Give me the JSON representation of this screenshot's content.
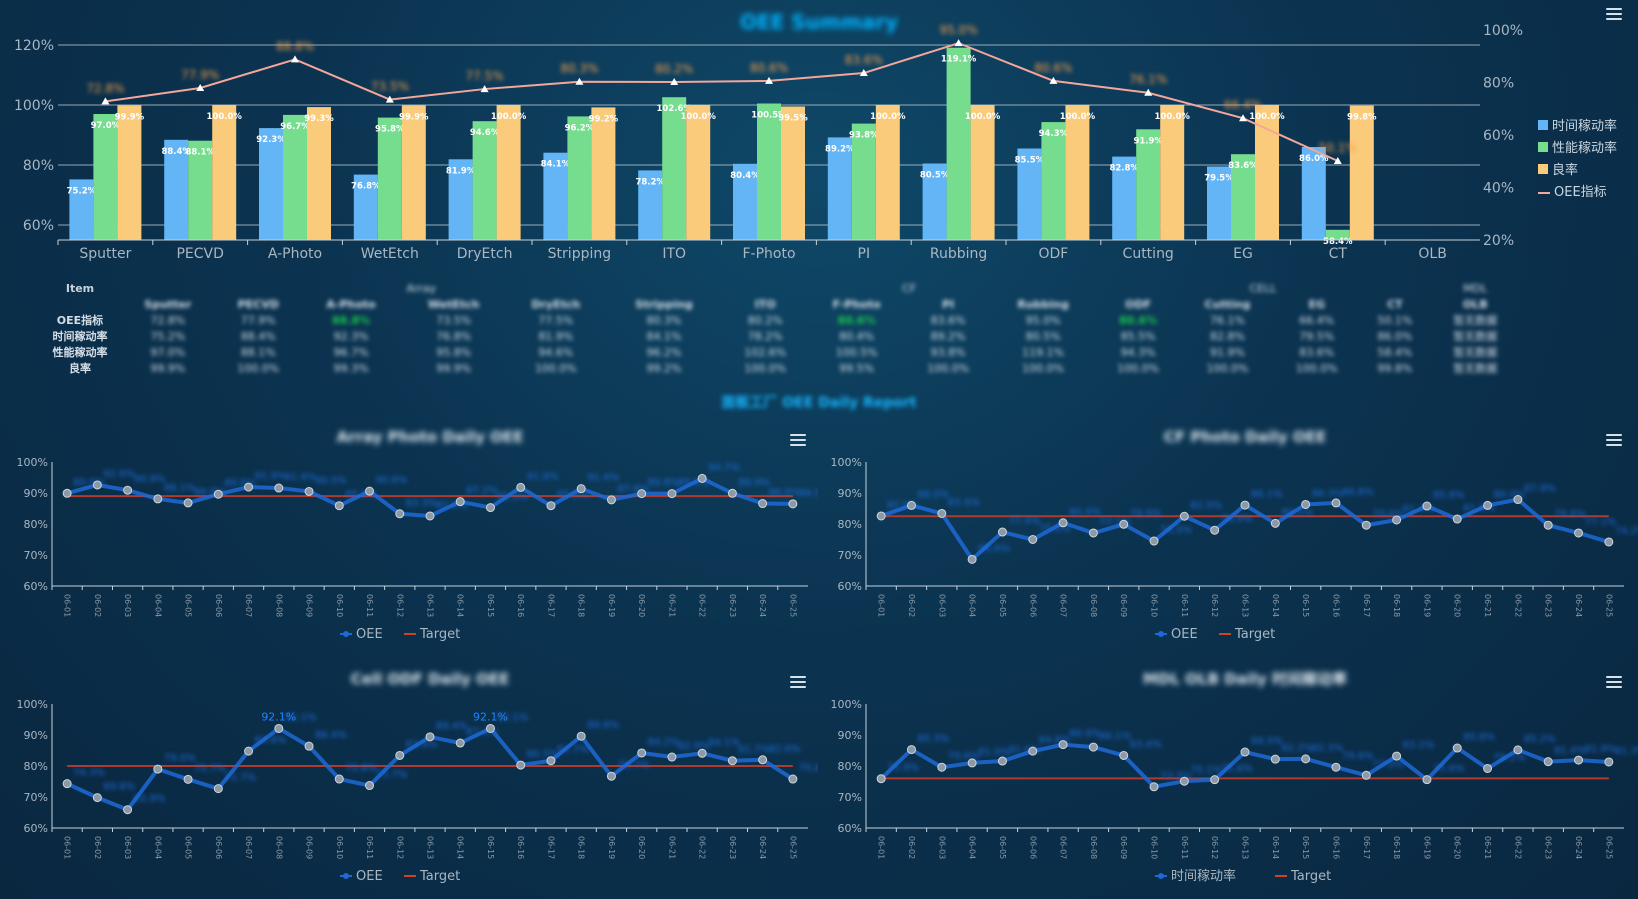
{
  "summary": {
    "title": "OEE Summary",
    "categories": [
      "Sputter",
      "PECVD",
      "A-Photo",
      "WetEtch",
      "DryEtch",
      "Stripping",
      "ITO",
      "F-Photo",
      "PI",
      "Rubbing",
      "ODF",
      "Cutting",
      "EG",
      "CT",
      "OLB"
    ],
    "legend": [
      "时间稼动率",
      "性能稼动率",
      "良率",
      "OEE指标"
    ],
    "colors": {
      "time": "#64b5f6",
      "perf": "#77dd8e",
      "yield": "#fbcb7c",
      "oee": "#f4a69a"
    }
  },
  "table": {
    "item_label": "Item",
    "groups": [
      "Array",
      "CF",
      "CELL",
      "MDL"
    ],
    "columns": [
      "Sputter",
      "PECVD",
      "A-Photo",
      "WetEtch",
      "DryEtch",
      "Stripping",
      "ITO",
      "F-Photo",
      "PI",
      "Rubbing",
      "ODF",
      "Cutting",
      "EG",
      "CT",
      "OLB"
    ],
    "rows": [
      {
        "label": "OEE指标",
        "values": [
          "72.8%",
          "77.9%",
          "88.8%",
          "73.5%",
          "77.5%",
          "80.3%",
          "80.2%",
          "80.6%",
          "83.6%",
          "95.0%",
          "80.6%",
          "76.1%",
          "66.4%",
          "50.1%",
          "暂无数据"
        ]
      },
      {
        "label": "时间稼动率",
        "values": [
          "75.2%",
          "88.4%",
          "92.3%",
          "76.8%",
          "81.9%",
          "84.1%",
          "78.2%",
          "80.4%",
          "89.2%",
          "80.5%",
          "85.5%",
          "82.8%",
          "79.5%",
          "86.0%",
          "暂无数据"
        ]
      },
      {
        "label": "性能稼动率",
        "values": [
          "97.0%",
          "88.1%",
          "96.7%",
          "95.8%",
          "94.6%",
          "96.2%",
          "102.6%",
          "100.5%",
          "93.8%",
          "119.1%",
          "94.3%",
          "91.9%",
          "83.6%",
          "58.4%",
          "暂无数据"
        ]
      },
      {
        "label": "良率",
        "values": [
          "99.9%",
          "100.0%",
          "99.3%",
          "99.9%",
          "100.0%",
          "99.2%",
          "100.0%",
          "99.5%",
          "100.0%",
          "100.0%",
          "100.0%",
          "100.0%",
          "100.0%",
          "99.8%",
          "暂无数据"
        ]
      }
    ]
  },
  "report_link": "面板工厂 OEE Daily Report",
  "dates": [
    "06-01",
    "06-02",
    "06-03",
    "06-04",
    "06-05",
    "06-06",
    "06-07",
    "06-08",
    "06-09",
    "06-10",
    "06-11",
    "06-12",
    "06-13",
    "06-14",
    "06-15",
    "06-16",
    "06-17",
    "06-18",
    "06-19",
    "06-20",
    "06-21",
    "06-22",
    "06-23",
    "06-24",
    "06-25"
  ],
  "daily_legend_target": "Target",
  "chart_data": [
    {
      "type": "bar",
      "title": "OEE Summary",
      "categories": [
        "Sputter",
        "PECVD",
        "A-Photo",
        "WetEtch",
        "DryEtch",
        "Stripping",
        "ITO",
        "F-Photo",
        "PI",
        "Rubbing",
        "ODF",
        "Cutting",
        "EG",
        "CT",
        "OLB"
      ],
      "ylim_left": [
        55,
        125
      ],
      "yticks_left": [
        "60%",
        "80%",
        "100%",
        "120%"
      ],
      "ylim_right": [
        20,
        100
      ],
      "yticks_right": [
        "20%",
        "40%",
        "60%",
        "80%",
        "100%"
      ],
      "series": [
        {
          "name": "时间稼动率",
          "type": "bar",
          "values": [
            75.2,
            88.4,
            92.3,
            76.8,
            81.9,
            84.1,
            78.2,
            80.4,
            89.2,
            80.5,
            85.5,
            82.8,
            79.5,
            86.0,
            null
          ],
          "labels": [
            "75.2%",
            "88.4%",
            "92.3%",
            "76.8%",
            "81.9%",
            "84.1%",
            "78.2%",
            "80.4%",
            "89.2%",
            "80.5%",
            "85.5%",
            "82.8%",
            "79.5%",
            "86.0%",
            ""
          ]
        },
        {
          "name": "性能稼动率",
          "type": "bar",
          "values": [
            97.0,
            88.1,
            96.7,
            95.8,
            94.6,
            96.2,
            102.6,
            100.5,
            93.8,
            119.1,
            94.3,
            91.9,
            83.6,
            58.4,
            null
          ],
          "labels": [
            "97.0%",
            "88.1%",
            "96.7%",
            "95.8%",
            "94.6%",
            "96.2%",
            "102.6%",
            "100.5%",
            "93.8%",
            "119.1%",
            "94.3%",
            "91.9%",
            "83.6%",
            "58.4%",
            ""
          ]
        },
        {
          "name": "良率",
          "type": "bar",
          "values": [
            99.9,
            100.0,
            99.3,
            99.9,
            100.0,
            99.2,
            100.0,
            99.5,
            100.0,
            100.0,
            100.0,
            100.0,
            100.0,
            99.8,
            null
          ],
          "labels": [
            "99.9%",
            "100.0%",
            "99.3%",
            "99.9%",
            "100.0%",
            "99.2%",
            "100.0%",
            "99.5%",
            "100.0%",
            "100.0%",
            "100.0%",
            "100.0%",
            "100.0%",
            "99.8%",
            ""
          ]
        },
        {
          "name": "OEE指标",
          "type": "line",
          "axis": "right",
          "values": [
            72.8,
            77.9,
            88.8,
            73.5,
            77.5,
            80.3,
            80.2,
            80.6,
            83.6,
            95.0,
            80.6,
            76.1,
            66.4,
            50.1,
            null
          ],
          "labels": [
            "72.8%",
            "77.9%",
            "88.8%",
            "73.5%",
            "77.5%",
            "80.3%",
            "80.2%",
            "80.6%",
            "83.6%",
            "95.0%",
            "80.6%",
            "76.1%",
            "66.4%",
            "50.1%",
            ""
          ]
        }
      ],
      "legend": "right"
    },
    {
      "type": "line",
      "title": "Array Photo Daily OEE",
      "ylim": [
        60,
        100
      ],
      "yticks": [
        "60%",
        "70%",
        "80%",
        "90%",
        "100%"
      ],
      "series": [
        {
          "name": "OEE",
          "values": [
            89.9,
            92.6,
            90.9,
            88.1,
            86.8,
            89.6,
            91.9,
            91.6,
            90.5,
            85.9,
            90.6,
            83.3,
            82.6,
            87.2,
            85.3,
            91.8,
            85.9,
            91.4,
            87.8,
            89.8,
            89.8,
            94.7,
            89.9,
            86.6,
            86.5
          ]
        },
        {
          "name": "Target",
          "values": [
            89,
            89,
            89,
            89,
            89,
            89,
            89,
            89,
            89,
            89,
            89,
            89,
            89,
            89,
            89,
            89,
            89,
            89,
            89,
            89,
            89,
            89,
            89,
            89,
            89
          ]
        }
      ],
      "legend": "bottom"
    },
    {
      "type": "line",
      "title": "CF Photo Daily OEE",
      "ylim": [
        60,
        100
      ],
      "yticks": [
        "60%",
        "70%",
        "80%",
        "90%",
        "100%"
      ],
      "series": [
        {
          "name": "OEE",
          "values": [
            82.6,
            86.0,
            83.4,
            68.6,
            77.4,
            75.0,
            80.4,
            77.1,
            79.9,
            74.5,
            82.5,
            78.0,
            86.1,
            80.2,
            86.3,
            86.8,
            79.6,
            81.3,
            85.8,
            81.6,
            86.0,
            87.9,
            79.6,
            77.1,
            74.2
          ]
        },
        {
          "name": "Target",
          "values": [
            82.5,
            82.5,
            82.5,
            82.5,
            82.5,
            82.5,
            82.5,
            82.5,
            82.5,
            82.5,
            82.5,
            82.5,
            82.5,
            82.5,
            82.5,
            82.5,
            82.5,
            82.5,
            82.5,
            82.5,
            82.5,
            82.5,
            82.5,
            82.5,
            82.5
          ]
        }
      ],
      "legend": "bottom"
    },
    {
      "type": "line",
      "title": "Cell ODF Daily OEE",
      "ylim": [
        60,
        100
      ],
      "yticks": [
        "60%",
        "70%",
        "80%",
        "90%",
        "100%"
      ],
      "series": [
        {
          "name": "OEE",
          "values": [
            74.3,
            69.8,
            65.9,
            79.0,
            75.7,
            72.7,
            84.8,
            92.1,
            86.4,
            75.8,
            73.7,
            83.4,
            89.4,
            87.4,
            92.1,
            80.3,
            81.7,
            89.6,
            76.7,
            84.2,
            82.9,
            84.1,
            81.7,
            82.0,
            75.8
          ]
        },
        {
          "name": "Target",
          "values": [
            80,
            80,
            80,
            80,
            80,
            80,
            80,
            80,
            80,
            80,
            80,
            80,
            80,
            80,
            80,
            80,
            80,
            80,
            80,
            80,
            80,
            80,
            80,
            80,
            80
          ]
        }
      ],
      "annotations": [
        "92.1%",
        "92.1%"
      ],
      "legend": "bottom"
    },
    {
      "type": "line",
      "title": "MDL OLB Daily 时间稼动率",
      "ylim": [
        60,
        100
      ],
      "yticks": [
        "60%",
        "70%",
        "80%",
        "90%",
        "100%"
      ],
      "series": [
        {
          "name": "时间稼动率",
          "values": [
            75.9,
            85.3,
            79.6,
            81.0,
            81.6,
            84.8,
            86.9,
            86.1,
            83.4,
            73.3,
            75.1,
            75.6,
            84.5,
            82.2,
            82.3,
            79.6,
            77.0,
            83.2,
            75.6,
            85.8,
            79.2,
            85.2,
            81.4,
            81.9,
            81.3
          ]
        },
        {
          "name": "Target",
          "values": [
            76,
            76,
            76,
            76,
            76,
            76,
            76,
            76,
            76,
            76,
            76,
            76,
            76,
            76,
            76,
            76,
            76,
            76,
            76,
            76,
            76,
            76,
            76,
            76,
            76
          ]
        }
      ],
      "legend": "bottom"
    }
  ]
}
